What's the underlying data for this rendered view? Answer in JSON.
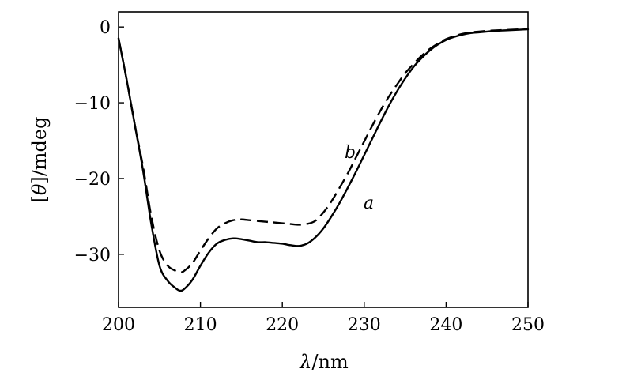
{
  "chart_data": {
    "type": "line",
    "xlabel_symbol": "λ",
    "xlabel_unit": "/nm",
    "ylabel_symbol": "θ",
    "ylabel_unit": "/mdeg",
    "xlim": [
      200,
      250
    ],
    "ylim": [
      -37,
      2
    ],
    "x_ticks": [
      200,
      210,
      220,
      230,
      240,
      250
    ],
    "y_ticks": [
      0,
      -10,
      -20,
      -30
    ],
    "x_tick_labels": [
      "200",
      "210",
      "220",
      "230",
      "240",
      "250"
    ],
    "y_tick_labels": [
      "0",
      "−10",
      "−20",
      "−30"
    ],
    "grid": false,
    "series": [
      {
        "name": "a",
        "style": "solid",
        "color": "#000000",
        "x": [
          200,
          201,
          202,
          203,
          204,
          205,
          206,
          207,
          207.5,
          208,
          209,
          210,
          211,
          212,
          213,
          214,
          215,
          216,
          217,
          218,
          219,
          220,
          221,
          222,
          223,
          224,
          225,
          226,
          227,
          228,
          229,
          230,
          231,
          232,
          233,
          234,
          235,
          236,
          237,
          238,
          239,
          240,
          241,
          242,
          243,
          244,
          245,
          246,
          247,
          248,
          249,
          250
        ],
        "y": [
          -1.5,
          -7,
          -13,
          -19,
          -26,
          -31.5,
          -33.5,
          -34.5,
          -34.8,
          -34.6,
          -33.4,
          -31.5,
          -29.8,
          -28.6,
          -28.1,
          -27.9,
          -28.0,
          -28.2,
          -28.4,
          -28.4,
          -28.5,
          -28.6,
          -28.8,
          -28.9,
          -28.6,
          -27.8,
          -26.6,
          -25.0,
          -23.2,
          -21.2,
          -19.1,
          -16.9,
          -14.7,
          -12.5,
          -10.4,
          -8.5,
          -6.8,
          -5.3,
          -4.1,
          -3.1,
          -2.3,
          -1.7,
          -1.3,
          -1.0,
          -0.8,
          -0.7,
          -0.6,
          -0.5,
          -0.45,
          -0.4,
          -0.35,
          -0.3
        ]
      },
      {
        "name": "b",
        "style": "dashed",
        "color": "#000000",
        "x": [
          200,
          201,
          202,
          203,
          204,
          205,
          206,
          207,
          207.5,
          208,
          209,
          210,
          211,
          212,
          213,
          214,
          215,
          216,
          217,
          218,
          219,
          220,
          221,
          222,
          223,
          224,
          225,
          226,
          227,
          228,
          229,
          230,
          231,
          232,
          233,
          234,
          235,
          236,
          237,
          238,
          239,
          240,
          241,
          242,
          243,
          244,
          245,
          246,
          247,
          248,
          249,
          250
        ],
        "y": [
          -1.5,
          -7,
          -13,
          -18.5,
          -25,
          -29.5,
          -31.5,
          -32.2,
          -32.4,
          -32.2,
          -31.2,
          -29.5,
          -27.9,
          -26.6,
          -25.9,
          -25.5,
          -25.4,
          -25.5,
          -25.6,
          -25.7,
          -25.8,
          -25.9,
          -26.0,
          -26.1,
          -26.0,
          -25.6,
          -24.5,
          -23.0,
          -21.2,
          -19.3,
          -17.2,
          -15.1,
          -13.0,
          -11.0,
          -9.2,
          -7.6,
          -6.1,
          -4.9,
          -3.8,
          -2.9,
          -2.2,
          -1.6,
          -1.2,
          -0.9,
          -0.7,
          -0.6,
          -0.5,
          -0.45,
          -0.4,
          -0.35,
          -0.3,
          -0.25
        ]
      }
    ]
  }
}
